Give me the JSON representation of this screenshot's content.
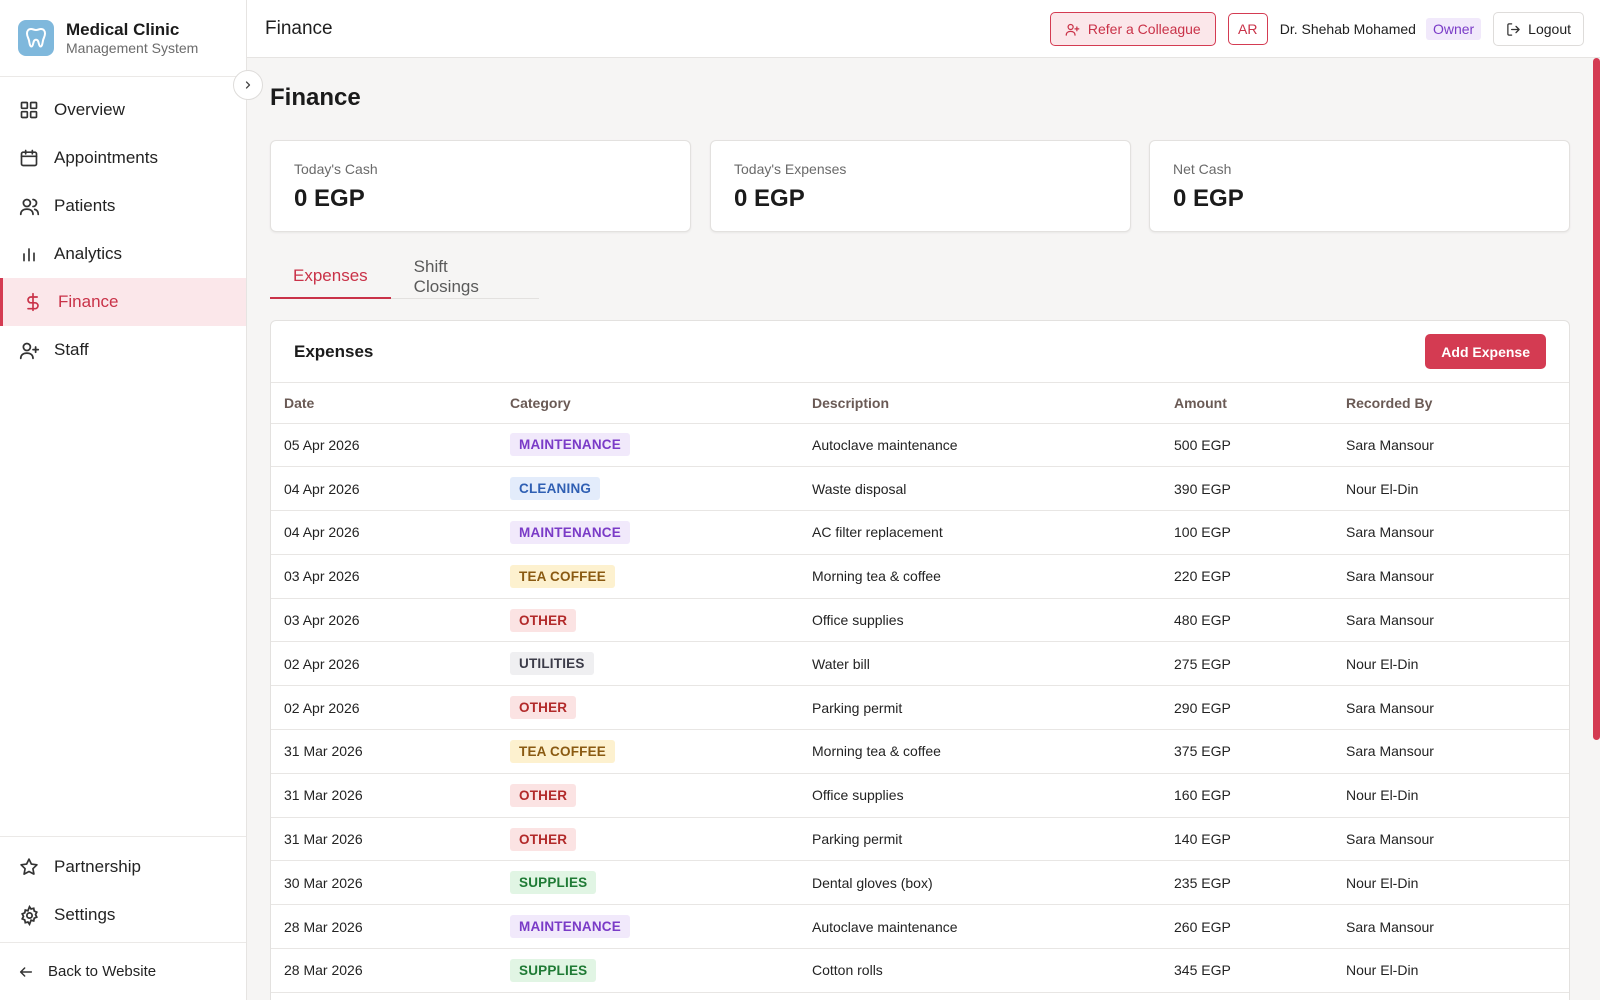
{
  "brand": {
    "title": "Medical Clinic",
    "subtitle": "Management System"
  },
  "nav": {
    "items": [
      {
        "label": "Overview",
        "icon": "grid-icon"
      },
      {
        "label": "Appointments",
        "icon": "calendar-icon"
      },
      {
        "label": "Patients",
        "icon": "users-icon"
      },
      {
        "label": "Analytics",
        "icon": "bar-chart-icon"
      },
      {
        "label": "Finance",
        "icon": "dollar-icon",
        "active": true
      },
      {
        "label": "Staff",
        "icon": "user-plus-icon"
      }
    ],
    "bottom": [
      {
        "label": "Partnership",
        "icon": "star-icon"
      },
      {
        "label": "Settings",
        "icon": "gear-icon"
      }
    ],
    "back_label": "Back to Website"
  },
  "topbar": {
    "title": "Finance",
    "refer_label": "Refer a Colleague",
    "lang_label": "AR",
    "user_name": "Dr. Shehab Mohamed",
    "role": "Owner",
    "logout_label": "Logout"
  },
  "page": {
    "title": "Finance"
  },
  "stats": [
    {
      "label": "Today's Cash",
      "value": "0 EGP"
    },
    {
      "label": "Today's Expenses",
      "value": "0 EGP"
    },
    {
      "label": "Net Cash",
      "value": "0 EGP"
    }
  ],
  "tabs": [
    {
      "label": "Expenses",
      "active": true
    },
    {
      "label": "Shift Closings",
      "active": false
    }
  ],
  "expenses": {
    "title": "Expenses",
    "add_label": "Add Expense",
    "columns": [
      "Date",
      "Category",
      "Description",
      "Amount",
      "Recorded By"
    ],
    "rows": [
      {
        "date": "05 Apr 2026",
        "category": "MAINTENANCE",
        "description": "Autoclave maintenance",
        "amount": "500 EGP",
        "recorded_by": "Sara Mansour"
      },
      {
        "date": "04 Apr 2026",
        "category": "CLEANING",
        "description": "Waste disposal",
        "amount": "390 EGP",
        "recorded_by": "Nour El-Din"
      },
      {
        "date": "04 Apr 2026",
        "category": "MAINTENANCE",
        "description": "AC filter replacement",
        "amount": "100 EGP",
        "recorded_by": "Sara Mansour"
      },
      {
        "date": "03 Apr 2026",
        "category": "TEA COFFEE",
        "description": "Morning tea & coffee",
        "amount": "220 EGP",
        "recorded_by": "Sara Mansour"
      },
      {
        "date": "03 Apr 2026",
        "category": "OTHER",
        "description": "Office supplies",
        "amount": "480 EGP",
        "recorded_by": "Sara Mansour"
      },
      {
        "date": "02 Apr 2026",
        "category": "UTILITIES",
        "description": "Water bill",
        "amount": "275 EGP",
        "recorded_by": "Nour El-Din"
      },
      {
        "date": "02 Apr 2026",
        "category": "OTHER",
        "description": "Parking permit",
        "amount": "290 EGP",
        "recorded_by": "Sara Mansour"
      },
      {
        "date": "31 Mar 2026",
        "category": "TEA COFFEE",
        "description": "Morning tea & coffee",
        "amount": "375 EGP",
        "recorded_by": "Sara Mansour"
      },
      {
        "date": "31 Mar 2026",
        "category": "OTHER",
        "description": "Office supplies",
        "amount": "160 EGP",
        "recorded_by": "Nour El-Din"
      },
      {
        "date": "31 Mar 2026",
        "category": "OTHER",
        "description": "Parking permit",
        "amount": "140 EGP",
        "recorded_by": "Sara Mansour"
      },
      {
        "date": "30 Mar 2026",
        "category": "SUPPLIES",
        "description": "Dental gloves (box)",
        "amount": "235 EGP",
        "recorded_by": "Nour El-Din"
      },
      {
        "date": "28 Mar 2026",
        "category": "MAINTENANCE",
        "description": "Autoclave maintenance",
        "amount": "260 EGP",
        "recorded_by": "Sara Mansour"
      },
      {
        "date": "28 Mar 2026",
        "category": "SUPPLIES",
        "description": "Cotton rolls",
        "amount": "345 EGP",
        "recorded_by": "Nour El-Din"
      }
    ]
  },
  "category_colors": {
    "MAINTENANCE": {
      "bg": "#f1e9fb",
      "fg": "#7a3bc7"
    },
    "CLEANING": {
      "bg": "#e3ecfb",
      "fg": "#2f5fb3"
    },
    "TEA COFFEE": {
      "bg": "#fdf1cf",
      "fg": "#8a5a12"
    },
    "OTHER": {
      "bg": "#fbe3e3",
      "fg": "#b22a2a"
    },
    "UTILITIES": {
      "bg": "#efeff1",
      "fg": "#3b3b48"
    },
    "SUPPLIES": {
      "bg": "#e1f5e4",
      "fg": "#1f7a35"
    }
  },
  "colors": {
    "accent": "#d43b52",
    "accent_soft": "#fbe7ea"
  }
}
